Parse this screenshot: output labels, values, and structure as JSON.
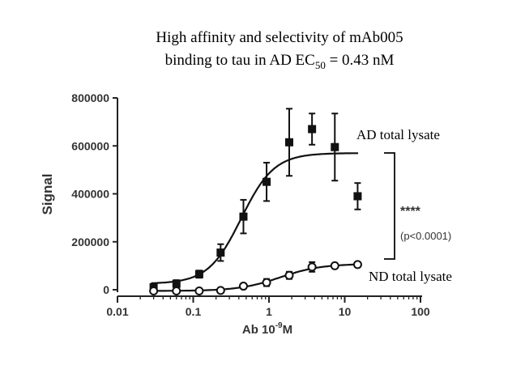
{
  "chart_data": {
    "type": "scatter",
    "title_line1": "High affinity and selectivity of mAb005",
    "title_line2_prefix": "binding to tau in AD EC",
    "title_line2_sub": "50",
    "title_line2_suffix": " = 0.43 nM",
    "xlabel_prefix": "Ab 10",
    "xlabel_sup": "-9",
    "xlabel_suffix": "M",
    "ylabel": "Signal",
    "xscale": "log",
    "xlim": [
      0.01,
      100
    ],
    "ylim": [
      0,
      800000
    ],
    "xticks": [
      "0.01",
      "0.1",
      "1",
      "10",
      "100"
    ],
    "yticks": [
      "0",
      "200000",
      "400000",
      "600000",
      "800000"
    ],
    "series": [
      {
        "name": "AD total lysate",
        "marker": "filled-square",
        "x": [
          0.03,
          0.06,
          0.12,
          0.23,
          0.46,
          0.93,
          1.85,
          3.7,
          7.4,
          14.8
        ],
        "y": [
          10000,
          25000,
          65000,
          155000,
          305000,
          450000,
          615000,
          670000,
          595000,
          390000
        ],
        "err": [
          15000,
          15000,
          15000,
          35000,
          70000,
          80000,
          140000,
          65000,
          140000,
          55000
        ],
        "fit": {
          "bottom": 25000,
          "top": 570000,
          "ec50": 0.43,
          "hill": 2.0
        }
      },
      {
        "name": "ND total lysate",
        "marker": "open-circle",
        "x": [
          0.03,
          0.06,
          0.12,
          0.23,
          0.46,
          0.93,
          1.85,
          3.7,
          7.4,
          14.8
        ],
        "y": [
          -5000,
          -5000,
          -5000,
          -3000,
          15000,
          30000,
          60000,
          95000,
          100000,
          105000
        ],
        "err": [
          5000,
          5000,
          5000,
          5000,
          10000,
          15000,
          15000,
          20000,
          8000,
          10000
        ],
        "fit": {
          "bottom": -5000,
          "top": 108000,
          "ec50": 1.4,
          "hill": 1.6
        }
      }
    ],
    "annotation_stars": "****",
    "annotation_p": "(p<0.0001)"
  }
}
